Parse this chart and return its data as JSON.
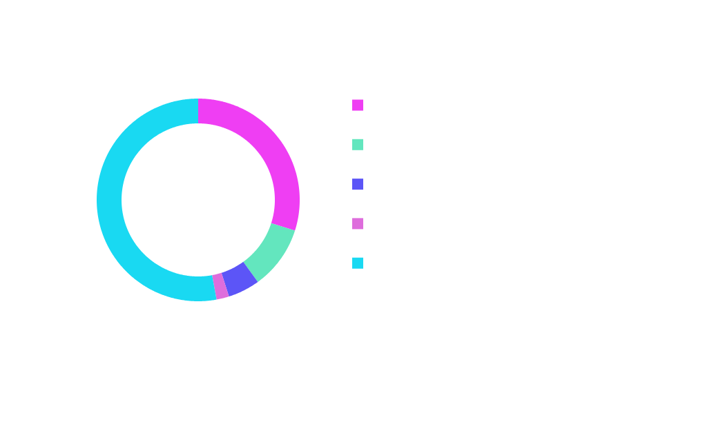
{
  "chart_data": {
    "type": "donut",
    "categories": [
      null,
      null,
      null,
      null,
      null
    ],
    "values": [
      29.9,
      10.1,
      5.1,
      2.0,
      52.9
    ],
    "colors": [
      "#ef3ef3",
      "#63e6be",
      "#5c55f7",
      "#de6ddc",
      "#19d9f2"
    ]
  }
}
